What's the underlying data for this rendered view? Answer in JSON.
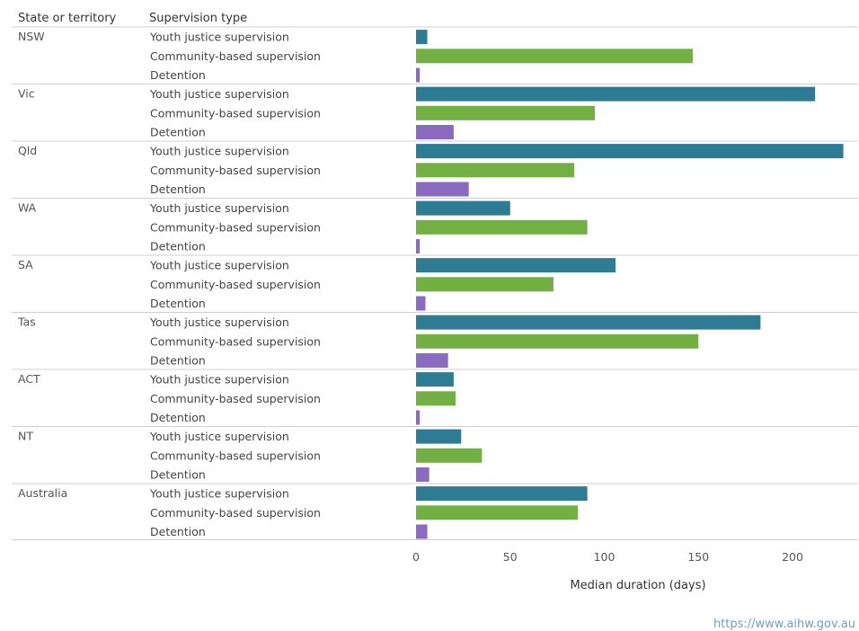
{
  "colors": {
    "youth_justice": "#2e7c94",
    "community": "#72b043",
    "detention": "#8b6bbf",
    "divider": "#cfcfcf",
    "text": "#333333"
  },
  "source_text": "https://www.aihw.gov.au",
  "chart_data": {
    "type": "bar",
    "orientation": "horizontal",
    "column_headers": [
      "State or territory",
      "Supervision type"
    ],
    "series_names": [
      "Youth justice supervision",
      "Community-based supervision",
      "Detention"
    ],
    "groups": [
      {
        "state": "NSW",
        "values": [
          6,
          147,
          2
        ]
      },
      {
        "state": "Vic",
        "values": [
          212,
          95,
          20
        ]
      },
      {
        "state": "Qld",
        "values": [
          227,
          84,
          28
        ]
      },
      {
        "state": "WA",
        "values": [
          50,
          91,
          2
        ]
      },
      {
        "state": "SA",
        "values": [
          106,
          73,
          5
        ]
      },
      {
        "state": "Tas",
        "values": [
          183,
          150,
          17
        ]
      },
      {
        "state": "ACT",
        "values": [
          20,
          21,
          2
        ]
      },
      {
        "state": "NT",
        "values": [
          24,
          35,
          7
        ]
      },
      {
        "state": "Australia",
        "values": [
          91,
          86,
          6
        ]
      }
    ],
    "xlabel": "Median duration (days)",
    "xticks": [
      0,
      50,
      100,
      150,
      200
    ],
    "xlim": [
      0,
      230
    ]
  }
}
